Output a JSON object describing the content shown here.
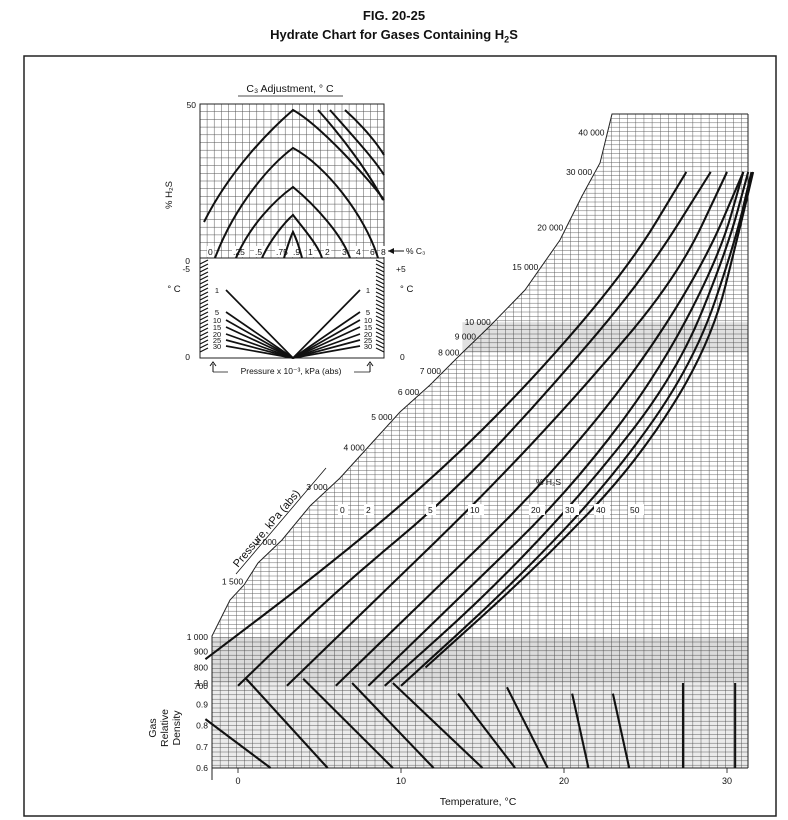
{
  "figure": {
    "label": "FIG. 20-25",
    "title_main": "Hydrate Chart for Gases Containing H",
    "title_sub": "2",
    "title_end": "S"
  },
  "chart_data": {
    "type": "line",
    "xlabel": "Temperature, °C",
    "xlim": [
      -2,
      32
    ],
    "x_ticks": [
      0,
      10,
      20,
      30
    ],
    "pressure_label": "Pressure, kPa (abs)",
    "pressure_ticks": [
      {
        "label": "40 000",
        "value": 40000
      },
      {
        "label": "30 000",
        "value": 30000
      },
      {
        "label": "20 000",
        "value": 20000
      },
      {
        "label": "15 000",
        "value": 15000
      },
      {
        "label": "10 000",
        "value": 10000
      },
      {
        "label": "9 000",
        "value": 9000
      },
      {
        "label": "8 000",
        "value": 8000
      },
      {
        "label": "7 000",
        "value": 7000
      },
      {
        "label": "6 000",
        "value": 6000
      },
      {
        "label": "5 000",
        "value": 5000
      },
      {
        "label": "4 000",
        "value": 4000
      },
      {
        "label": "3 000",
        "value": 3000
      },
      {
        "label": "2 000",
        "value": 2000
      },
      {
        "label": "1 500",
        "value": 1500
      },
      {
        "label": "1 000",
        "value": 1000
      },
      {
        "label": "900",
        "value": 900
      },
      {
        "label": "800",
        "value": 800
      },
      {
        "label": "700",
        "value": 700
      }
    ],
    "gas_density_label_lines": [
      "Gas",
      "Relative",
      "Density"
    ],
    "gas_density_ticks": [
      "1.0",
      "0.9",
      "0.8",
      "0.7",
      "0.6"
    ],
    "h2s_label": "% H₂S",
    "h2s_series": [
      {
        "name": "0",
        "points": [
          [
            -2,
            850
          ],
          [
            5,
            1600
          ],
          [
            12,
            3200
          ],
          [
            18,
            6500
          ],
          [
            24,
            15000
          ],
          [
            27.5,
            30000
          ]
        ]
      },
      {
        "name": "2",
        "points": [
          [
            0,
            700
          ],
          [
            6,
            1400
          ],
          [
            13,
            2800
          ],
          [
            19,
            6000
          ],
          [
            25,
            14000
          ],
          [
            29,
            30000
          ]
        ]
      },
      {
        "name": "5",
        "points": [
          [
            3,
            700
          ],
          [
            9,
            1400
          ],
          [
            15,
            2800
          ],
          [
            21,
            6000
          ],
          [
            27,
            14000
          ],
          [
            30,
            30000
          ]
        ]
      },
      {
        "name": "10",
        "points": [
          [
            6,
            700
          ],
          [
            12,
            1400
          ],
          [
            18,
            2800
          ],
          [
            24,
            6500
          ],
          [
            28.5,
            15000
          ],
          [
            31,
            30000
          ]
        ]
      },
      {
        "name": "20",
        "points": [
          [
            8,
            700
          ],
          [
            14,
            1400
          ],
          [
            20,
            2800
          ],
          [
            25.5,
            6500
          ],
          [
            29.5,
            16000
          ],
          [
            31,
            30000
          ]
        ]
      },
      {
        "name": "30",
        "points": [
          [
            9,
            700
          ],
          [
            15.5,
            1400
          ],
          [
            21.5,
            3000
          ],
          [
            27,
            7000
          ],
          [
            30,
            17000
          ],
          [
            31.3,
            30000
          ]
        ]
      },
      {
        "name": "40",
        "points": [
          [
            10,
            700
          ],
          [
            17,
            1500
          ],
          [
            23,
            3200
          ],
          [
            28,
            7500
          ],
          [
            30.5,
            18000
          ],
          [
            31.5,
            30000
          ]
        ]
      },
      {
        "name": "50",
        "points": [
          [
            11.5,
            800
          ],
          [
            18.5,
            1700
          ],
          [
            24.5,
            3600
          ],
          [
            29,
            8500
          ],
          [
            30.8,
            20000
          ],
          [
            31.6,
            30000
          ]
        ]
      }
    ],
    "density_lines": [
      {
        "points": [
          [
            -2,
            0.83
          ],
          [
            2,
            0.6
          ]
        ]
      },
      {
        "points": [
          [
            0.5,
            1.02
          ],
          [
            5.5,
            0.6
          ]
        ]
      },
      {
        "points": [
          [
            4,
            1.02
          ],
          [
            9.5,
            0.6
          ]
        ]
      },
      {
        "points": [
          [
            7,
            1.0
          ],
          [
            12,
            0.6
          ]
        ]
      },
      {
        "points": [
          [
            9.5,
            1.0
          ],
          [
            15,
            0.6
          ]
        ]
      },
      {
        "points": [
          [
            13.5,
            0.95
          ],
          [
            17,
            0.6
          ]
        ]
      },
      {
        "points": [
          [
            16.5,
            0.98
          ],
          [
            19,
            0.6
          ]
        ]
      },
      {
        "points": [
          [
            20.5,
            0.95
          ],
          [
            21.5,
            0.6
          ]
        ]
      },
      {
        "points": [
          [
            23,
            0.95
          ],
          [
            24,
            0.6
          ]
        ]
      },
      {
        "points": [
          [
            27.3,
            1.0
          ],
          [
            27.3,
            0.6
          ]
        ]
      },
      {
        "points": [
          [
            30.5,
            1.0
          ],
          [
            30.5,
            0.6
          ]
        ]
      }
    ],
    "inset": {
      "title": "C₃ Adjustment, ° C",
      "ylabel_top": "% H₂S",
      "y_top_ticks": [
        "50",
        "0"
      ],
      "c3_label": "% C₃",
      "c3_ticks": [
        "0",
        ".25",
        ".5",
        ".75",
        ".9",
        "1",
        "2",
        "3",
        "4",
        "6",
        "8"
      ],
      "ylabel_bottom": "° C",
      "left_temp_ticks": [
        "-5",
        "0"
      ],
      "right_temp_ticks": [
        "+5",
        "0"
      ],
      "fan_labels": [
        "1",
        "5",
        "10",
        "15",
        "20",
        "25",
        "30"
      ],
      "xlabel": "Pressure x 10⁻³, kPa (abs)"
    }
  }
}
